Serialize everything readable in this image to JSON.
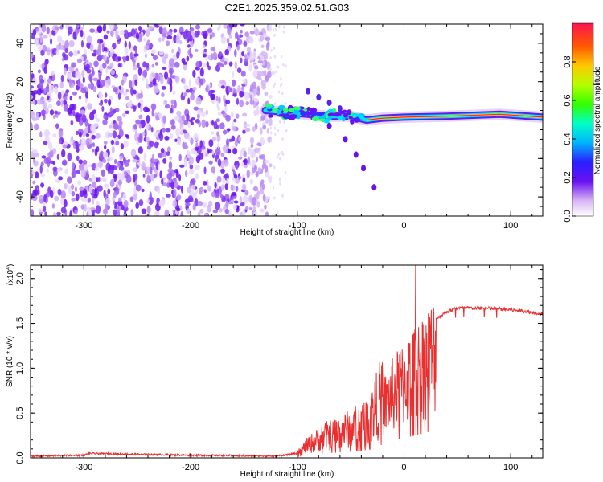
{
  "title": "C2E1.2025.359.02.51.G03",
  "chart_data": [
    {
      "type": "heatmap",
      "xlabel": "Height of straight line (km)",
      "ylabel": "Frequency (Hz)",
      "xlim": [
        -350,
        130
      ],
      "ylim": [
        -50,
        50
      ],
      "xticks": [
        -300,
        -200,
        -100,
        0,
        100
      ],
      "yticks": [
        -40,
        -20,
        0,
        20,
        40
      ],
      "colorbar": {
        "label": "Normalized spectral amplitude",
        "range": [
          0,
          1
        ],
        "ticks": [
          "0.0",
          "0.2",
          "0.4",
          "0.6",
          "0.8"
        ],
        "tick_values": [
          0,
          0.2,
          0.4,
          0.6,
          0.8
        ]
      },
      "features": {
        "noise_region_x": [
          -350,
          -125
        ],
        "signal_line": [
          {
            "x": -130,
            "y": 5
          },
          {
            "x": -110,
            "y": 4
          },
          {
            "x": -90,
            "y": 3
          },
          {
            "x": -70,
            "y": 2
          },
          {
            "x": -50,
            "y": 2
          },
          {
            "x": -35,
            "y": 0
          },
          {
            "x": -20,
            "y": 1
          },
          {
            "x": 0,
            "y": 1.5
          },
          {
            "x": 40,
            "y": 2
          },
          {
            "x": 90,
            "y": 3
          },
          {
            "x": 130,
            "y": 1.5
          }
        ],
        "falling_branch": [
          {
            "x": -70,
            "y": -3
          },
          {
            "x": -55,
            "y": -10
          },
          {
            "x": -45,
            "y": -18
          },
          {
            "x": -38,
            "y": -25
          },
          {
            "x": -28,
            "y": -35
          }
        ],
        "rising_branch": [
          {
            "x": -90,
            "y": 15
          },
          {
            "x": -80,
            "y": 12
          },
          {
            "x": -70,
            "y": 9
          },
          {
            "x": -60,
            "y": 6
          }
        ]
      }
    },
    {
      "type": "line",
      "xlabel": "Height of straight line (km)",
      "ylabel": "SNR (10 * v/v)",
      "exponent": "(x10",
      "exponent_power": "4",
      "xlim": [
        -350,
        130
      ],
      "ylim": [
        0,
        2.15
      ],
      "xticks": [
        -300,
        -200,
        -100,
        0,
        100
      ],
      "yticks": [
        "0.0",
        "0.5",
        "1.0",
        "1.5",
        "2.0"
      ],
      "ytick_values": [
        0,
        0.5,
        1.0,
        1.5,
        2.0
      ],
      "series_color": "#e83030",
      "envelope": [
        {
          "x": -350,
          "y": 0.02
        },
        {
          "x": -300,
          "y": 0.03
        },
        {
          "x": -295,
          "y": 0.05
        },
        {
          "x": -200,
          "y": 0.03
        },
        {
          "x": -120,
          "y": 0.02
        },
        {
          "x": -100,
          "y": 0.05
        },
        {
          "x": -90,
          "y": 0.15
        },
        {
          "x": -75,
          "y": 0.25
        },
        {
          "x": -60,
          "y": 0.3
        },
        {
          "x": -50,
          "y": 0.35
        },
        {
          "x": -40,
          "y": 0.4
        },
        {
          "x": -30,
          "y": 0.5
        },
        {
          "x": -20,
          "y": 0.75
        },
        {
          "x": -10,
          "y": 0.95
        },
        {
          "x": 0,
          "y": 1.1
        },
        {
          "x": 10,
          "y": 1.25
        },
        {
          "x": 20,
          "y": 1.4
        },
        {
          "x": 30,
          "y": 1.55
        },
        {
          "x": 40,
          "y": 1.63
        },
        {
          "x": 50,
          "y": 1.67
        },
        {
          "x": 70,
          "y": 1.67
        },
        {
          "x": 90,
          "y": 1.66
        },
        {
          "x": 110,
          "y": 1.64
        },
        {
          "x": 130,
          "y": 1.61
        }
      ],
      "peak": {
        "x": 11,
        "y": 2.15
      }
    }
  ]
}
